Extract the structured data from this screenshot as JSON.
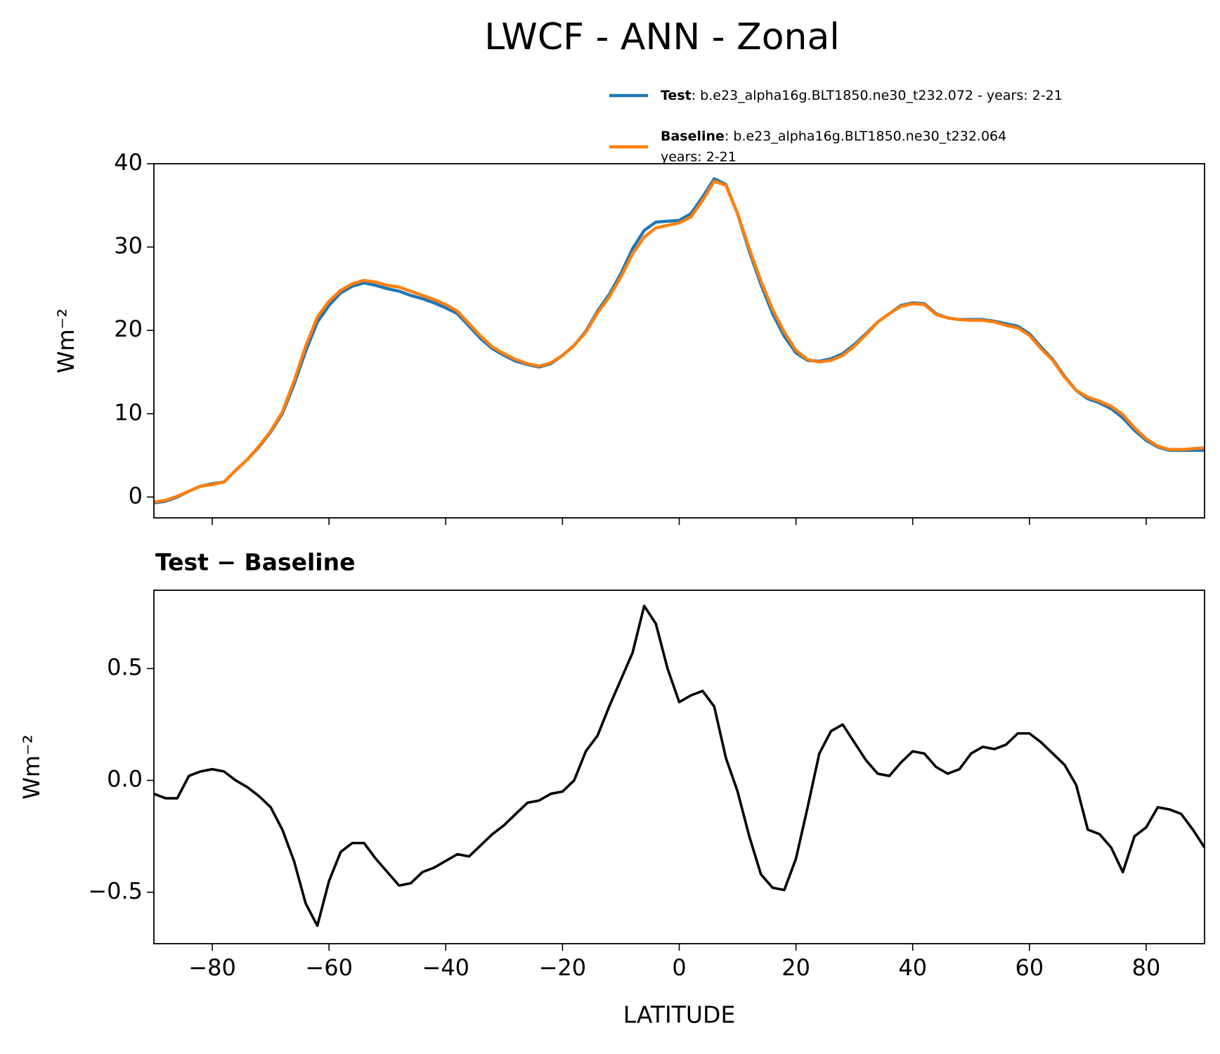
{
  "title": "LWCF - ANN - Zonal",
  "chart_data": [
    {
      "type": "line",
      "ylabel": "Wm⁻²",
      "x": [
        -90,
        -88,
        -86,
        -84,
        -82,
        -80,
        -78,
        -76,
        -74,
        -72,
        -70,
        -68,
        -66,
        -64,
        -62,
        -60,
        -58,
        -56,
        -54,
        -52,
        -50,
        -48,
        -46,
        -44,
        -42,
        -40,
        -38,
        -36,
        -34,
        -32,
        -30,
        -28,
        -26,
        -24,
        -22,
        -20,
        -18,
        -16,
        -14,
        -12,
        -10,
        -8,
        -6,
        -4,
        -2,
        0,
        2,
        4,
        6,
        8,
        10,
        12,
        14,
        16,
        18,
        20,
        22,
        24,
        26,
        28,
        30,
        32,
        34,
        36,
        38,
        40,
        42,
        44,
        46,
        48,
        50,
        52,
        54,
        56,
        58,
        60,
        62,
        64,
        66,
        68,
        70,
        72,
        74,
        76,
        78,
        80,
        82,
        84,
        86,
        88,
        90
      ],
      "series": [
        {
          "name": "Test",
          "case": [
            ": b.e23_alpha16g.BLT1850.ne30_t232.072 - years: 2-21"
          ],
          "color": "#1f77b4",
          "values": [
            -0.7,
            -0.5,
            0.0,
            0.7,
            1.3,
            1.6,
            1.8,
            3.2,
            4.5,
            6.0,
            7.8,
            10.0,
            13.5,
            17.5,
            21.0,
            23.0,
            24.5,
            25.3,
            25.7,
            25.4,
            25.0,
            24.7,
            24.2,
            23.8,
            23.3,
            22.7,
            22.0,
            20.5,
            19.0,
            17.8,
            17.0,
            16.3,
            15.9,
            15.6,
            16.0,
            17.0,
            18.2,
            19.9,
            22.3,
            24.3,
            26.8,
            29.8,
            32.0,
            33.0,
            33.1,
            33.2,
            34.0,
            36.0,
            38.2,
            37.5,
            34.0,
            29.5,
            25.5,
            22.0,
            19.3,
            17.3,
            16.4,
            16.3,
            16.6,
            17.2,
            18.3,
            19.6,
            21.0,
            22.0,
            23.0,
            23.3,
            23.2,
            22.0,
            21.5,
            21.3,
            21.3,
            21.3,
            21.1,
            20.8,
            20.5,
            19.6,
            18.0,
            16.5,
            14.5,
            12.8,
            11.8,
            11.3,
            10.6,
            9.5,
            8.0,
            6.8,
            6.0,
            5.6,
            5.6,
            5.6,
            5.6
          ]
        },
        {
          "name": "Baseline",
          "case": [
            ": b.e23_alpha16g.BLT1850.ne30_t232.064",
            "years: 2-21"
          ],
          "color": "#ff7f0e",
          "values": [
            -0.6,
            -0.4,
            0.1,
            0.7,
            1.3,
            1.5,
            1.8,
            3.2,
            4.5,
            6.1,
            7.9,
            10.2,
            13.9,
            18.1,
            21.6,
            23.5,
            24.8,
            25.6,
            26.0,
            25.8,
            25.4,
            25.2,
            24.7,
            24.2,
            23.7,
            23.1,
            22.3,
            20.8,
            19.3,
            18.0,
            17.2,
            16.5,
            16.0,
            15.7,
            16.1,
            17.0,
            18.2,
            19.8,
            22.1,
            24.0,
            26.4,
            29.2,
            31.2,
            32.3,
            32.6,
            32.9,
            33.6,
            35.6,
            37.9,
            37.4,
            34.0,
            29.8,
            25.9,
            22.5,
            19.8,
            17.6,
            16.5,
            16.2,
            16.4,
            17.0,
            18.1,
            19.5,
            21.0,
            22.0,
            22.9,
            23.2,
            23.1,
            21.9,
            21.5,
            21.3,
            21.2,
            21.2,
            21.0,
            20.6,
            20.3,
            19.4,
            17.8,
            16.4,
            14.4,
            12.8,
            12.0,
            11.5,
            10.9,
            9.9,
            8.3,
            7.0,
            6.1,
            5.7,
            5.7,
            5.8,
            5.9
          ]
        }
      ],
      "xlim": [
        -90,
        90
      ],
      "xticks": [
        -80,
        -60,
        -40,
        -20,
        0,
        20,
        40,
        60,
        80
      ],
      "ylim": [
        -2.5,
        40
      ],
      "yticks": [
        0,
        10,
        20,
        30,
        40
      ]
    },
    {
      "type": "line",
      "title": "Test − Baseline",
      "xlabel": "LATITUDE",
      "ylabel": "Wm⁻²",
      "x": [
        -90,
        -88,
        -86,
        -84,
        -82,
        -80,
        -78,
        -76,
        -74,
        -72,
        -70,
        -68,
        -66,
        -64,
        -62,
        -60,
        -58,
        -56,
        -54,
        -52,
        -50,
        -48,
        -46,
        -44,
        -42,
        -40,
        -38,
        -36,
        -34,
        -32,
        -30,
        -28,
        -26,
        -24,
        -22,
        -20,
        -18,
        -16,
        -14,
        -12,
        -10,
        -8,
        -6,
        -4,
        -2,
        0,
        2,
        4,
        6,
        8,
        10,
        12,
        14,
        16,
        18,
        20,
        22,
        24,
        26,
        28,
        30,
        32,
        34,
        36,
        38,
        40,
        42,
        44,
        46,
        48,
        50,
        52,
        54,
        56,
        58,
        60,
        62,
        64,
        66,
        68,
        70,
        72,
        74,
        76,
        78,
        80,
        82,
        84,
        86,
        88,
        90
      ],
      "series": [
        {
          "color": "#000000",
          "values": [
            -0.06,
            -0.08,
            -0.08,
            0.02,
            0.04,
            0.05,
            0.04,
            0.0,
            -0.03,
            -0.07,
            -0.12,
            -0.22,
            -0.36,
            -0.55,
            -0.65,
            -0.45,
            -0.32,
            -0.28,
            -0.28,
            -0.35,
            -0.41,
            -0.47,
            -0.46,
            -0.41,
            -0.39,
            -0.36,
            -0.33,
            -0.34,
            -0.29,
            -0.24,
            -0.2,
            -0.15,
            -0.1,
            -0.09,
            -0.06,
            -0.05,
            0.0,
            0.13,
            0.2,
            0.33,
            0.45,
            0.57,
            0.78,
            0.7,
            0.5,
            0.35,
            0.38,
            0.4,
            0.33,
            0.1,
            -0.05,
            -0.25,
            -0.42,
            -0.48,
            -0.49,
            -0.35,
            -0.12,
            0.12,
            0.22,
            0.25,
            0.17,
            0.09,
            0.03,
            0.02,
            0.08,
            0.13,
            0.12,
            0.06,
            0.03,
            0.05,
            0.12,
            0.15,
            0.14,
            0.16,
            0.21,
            0.21,
            0.17,
            0.12,
            0.07,
            -0.02,
            -0.22,
            -0.24,
            -0.3,
            -0.41,
            -0.25,
            -0.21,
            -0.12,
            -0.13,
            -0.15,
            -0.22,
            -0.3
          ]
        }
      ],
      "xlim": [
        -90,
        90
      ],
      "xticks": [
        {
          "value": -80,
          "label": "−80"
        },
        {
          "value": -60,
          "label": "−60"
        },
        {
          "value": -40,
          "label": "−40"
        },
        {
          "value": -20,
          "label": "−20"
        },
        0,
        20,
        40,
        60,
        80
      ],
      "ylim": [
        -0.73,
        0.85
      ],
      "yticks": [
        {
          "value": -0.5,
          "label": "−0.5"
        },
        {
          "value": 0,
          "label": "0.0"
        },
        0.5
      ]
    }
  ]
}
